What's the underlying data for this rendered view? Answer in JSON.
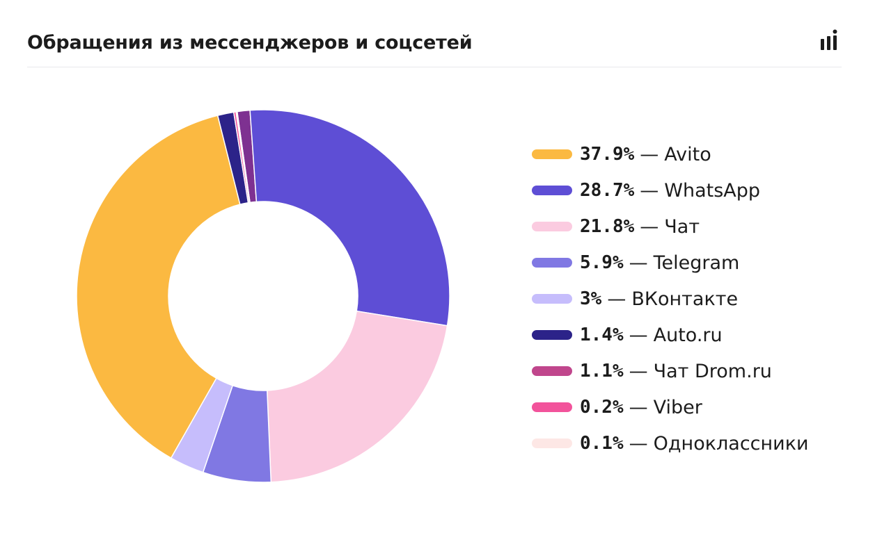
{
  "header": {
    "title": "Обращения из мессенджеров и соцсетей"
  },
  "legend_separator": "—",
  "chart_data": {
    "type": "pie",
    "donut": true,
    "slices": [
      {
        "label": "Чат Drom.ru",
        "display": "1.1%",
        "value": 1.1,
        "color": "#7e3191"
      },
      {
        "label": "WhatsApp",
        "display": "28.7%",
        "value": 28.7,
        "color": "#5e4ed5"
      },
      {
        "label": "Чат",
        "display": "21.8%",
        "value": 21.8,
        "color": "#fbcbe0"
      },
      {
        "label": "Telegram",
        "display": "5.9%",
        "value": 5.9,
        "color": "#8078e3"
      },
      {
        "label": "ВКонтакте",
        "display": "3%",
        "value": 3.0,
        "color": "#c6bdfc"
      },
      {
        "label": "Avito",
        "display": "37.9%",
        "value": 37.9,
        "color": "#fbb941"
      },
      {
        "label": "Auto.ru",
        "display": "1.4%",
        "value": 1.4,
        "color": "#2c2389"
      },
      {
        "label": "Viber",
        "display": "0.2%",
        "value": 0.2,
        "color": "#f2539b"
      },
      {
        "label": "Одноклассники",
        "display": "0.1%",
        "value": 0.1,
        "color": "#fde7e5"
      }
    ],
    "legend": [
      {
        "display": "37.9%",
        "label": "Avito",
        "color": "#fbb941"
      },
      {
        "display": "28.7%",
        "label": "WhatsApp",
        "color": "#5e4ed5"
      },
      {
        "display": "21.8%",
        "label": "Чат",
        "color": "#fbcbe0"
      },
      {
        "display": "5.9%",
        "label": "Telegram",
        "color": "#8078e3"
      },
      {
        "display": "3%",
        "label": "ВКонтакте",
        "color": "#c6bdfc"
      },
      {
        "display": "1.4%",
        "label": "Auto.ru",
        "color": "#2c2389"
      },
      {
        "display": "1.1%",
        "label": "Чат Drom.ru",
        "color": "#c0468c"
      },
      {
        "display": "0.2%",
        "label": "Viber",
        "color": "#f2539b"
      },
      {
        "display": "0.1%",
        "label": "Одноклассники",
        "color": "#fde7e5"
      }
    ],
    "legend_placement": "right"
  }
}
